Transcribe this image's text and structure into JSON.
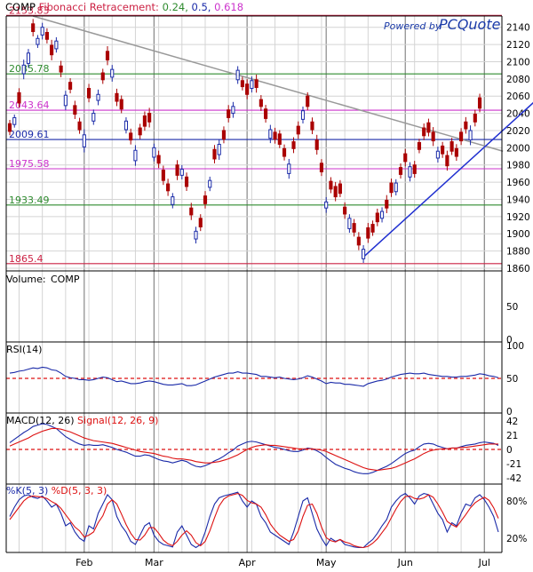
{
  "chart_data": [
    {
      "panel": "price",
      "type": "candlestick",
      "title": "COMP",
      "title_suffix": "Fibonacci Retracement:",
      "fib_ratio_labels": [
        "0.24",
        "0.5",
        "0.618"
      ],
      "watermark_top": "Powered by",
      "watermark_brand": "PCQuote",
      "ylim": [
        1860,
        2150
      ],
      "yticks": [
        "2140",
        "2120",
        "2100",
        "2080",
        "2060",
        "2040",
        "2020",
        "2000",
        "1980",
        "1960",
        "1940",
        "1920",
        "1900",
        "1880",
        "1860"
      ],
      "ytick_values": [
        2140,
        2120,
        2100,
        2080,
        2060,
        2040,
        2020,
        2000,
        1980,
        1960,
        1940,
        1920,
        1900,
        1880,
        1860
      ],
      "fib_levels": [
        {
          "value": 2153.83,
          "label": "2153.83",
          "color": "#cc2244"
        },
        {
          "value": 2085.78,
          "label": "2085.78",
          "color": "#2e8b2e"
        },
        {
          "value": 2043.64,
          "label": "2043.64",
          "color": "#cc33cc"
        },
        {
          "value": 2009.61,
          "label": "2009.61",
          "color": "#1a2aa8"
        },
        {
          "value": 1975.58,
          "label": "1975.58",
          "color": "#cc33cc"
        },
        {
          "value": 1933.49,
          "label": "1933.49",
          "color": "#2e8b2e"
        },
        {
          "value": 1865.4,
          "label": "1865.4",
          "color": "#cc2244"
        }
      ],
      "trendlines": [
        {
          "from": [
            5,
            2153
          ],
          "to": [
            106,
            1996
          ],
          "color": "#999999"
        },
        {
          "from": [
            76,
            1873
          ],
          "to": [
            110,
            2040
          ],
          "color": "#1f2fd0"
        }
      ],
      "month_labels": [
        {
          "label": "Feb",
          "index": 16
        },
        {
          "label": "Mar",
          "index": 31
        },
        {
          "label": "Apr",
          "index": 51
        },
        {
          "label": "May",
          "index": 68
        },
        {
          "label": "Jun",
          "index": 85
        },
        {
          "label": "Jul",
          "index": 102
        }
      ],
      "close": [
        2019,
        2035,
        2052,
        2096,
        2110,
        2135,
        2127,
        2140,
        2126,
        2108,
        2124,
        2088,
        2061,
        2068,
        2039,
        2021,
        2015,
        2058,
        2040,
        2062,
        2079,
        2102,
        2091,
        2054,
        2045,
        2031,
        2009,
        1997,
        2015,
        2025,
        2030,
        2000,
        1982,
        1962,
        1950,
        1943,
        1968,
        1975,
        1955,
        1922,
        1903,
        1908,
        1935,
        1962,
        1987,
        2004,
        2010,
        2035,
        2048,
        2090,
        2071,
        2062,
        2078,
        2070,
        2048,
        2034,
        2021,
        2010,
        2004,
        1990,
        1981,
        1999,
        2016,
        2043,
        2048,
        2021,
        1998,
        1972,
        1937,
        1952,
        1943,
        1947,
        1923,
        1918,
        1902,
        1887,
        1882,
        1895,
        1902,
        1914,
        1926,
        1930,
        1948,
        1959,
        1969,
        1984,
        1978,
        1970,
        1998,
        2014,
        2018,
        2008,
        1996,
        1993,
        1979,
        1996,
        1990,
        2008,
        2022,
        2020,
        2030,
        2046,
        2039,
        2030,
        2019,
        1996
      ],
      "open_offset": [
        9,
        -8,
        12,
        -10,
        -12,
        9,
        -7,
        -9,
        8,
        11,
        -9,
        7,
        -12,
        8,
        10,
        9,
        -14,
        11,
        -9,
        -7,
        8,
        10,
        -9,
        9,
        11,
        -10,
        8,
        -12,
        8,
        12,
        10,
        -11,
        9,
        12,
        8,
        -9,
        12,
        -7,
        11,
        8,
        -9,
        10,
        9,
        -8,
        11,
        -12,
        10,
        9,
        -8,
        -11,
        7,
        12,
        -9,
        9,
        8,
        11,
        -10,
        8,
        12,
        9,
        -11,
        8,
        9,
        -10,
        12,
        9,
        11,
        10,
        -7,
        9,
        12,
        11,
        8,
        -12,
        10,
        9,
        -11,
        12,
        9,
        10,
        -8,
        9,
        11,
        -10,
        8,
        9,
        -12,
        10,
        8,
        9,
        11,
        10,
        -8,
        9,
        12,
        11,
        9,
        10,
        8,
        -11,
        9,
        12
      ],
      "range": [
        11,
        9,
        13,
        16,
        12,
        14,
        10,
        13,
        12,
        16,
        11,
        15,
        13,
        12,
        14,
        12,
        16,
        13,
        11,
        14,
        12,
        15,
        13,
        14,
        12,
        11,
        13,
        15,
        12,
        13,
        16,
        12,
        14,
        13,
        15,
        11,
        14,
        12,
        13,
        15,
        13,
        12,
        14,
        11,
        13,
        15,
        12,
        14,
        13,
        12,
        11,
        14,
        12,
        15,
        13,
        12,
        14,
        13,
        11,
        12,
        15,
        13,
        14,
        12,
        11,
        13,
        15,
        12,
        14,
        12,
        13,
        11,
        14,
        12,
        13,
        15,
        12,
        14,
        11,
        13,
        12,
        15,
        13,
        11,
        12,
        14,
        13,
        12,
        11,
        13,
        12,
        15,
        13,
        12,
        14,
        11,
        13,
        12,
        14,
        15,
        13,
        12,
        14,
        11,
        13,
        12
      ]
    },
    {
      "panel": "volume",
      "type": "bar",
      "title": "Volume:",
      "series_name": "COMP",
      "yticks": [
        "50",
        "0"
      ],
      "ytick_values": [
        50,
        0
      ]
    },
    {
      "panel": "rsi",
      "type": "line",
      "title": "RSI(14)",
      "ylim": [
        0,
        100
      ],
      "yticks": [
        "100",
        "50",
        "0"
      ],
      "ytick_values": [
        100,
        50,
        0
      ],
      "reference_line": 50,
      "values": [
        58,
        59,
        61,
        62,
        64,
        66,
        65,
        67,
        66,
        63,
        62,
        58,
        53,
        51,
        50,
        48,
        48,
        47,
        48,
        50,
        52,
        51,
        48,
        45,
        46,
        44,
        42,
        42,
        43,
        45,
        46,
        45,
        43,
        41,
        40,
        40,
        41,
        42,
        39,
        39,
        40,
        43,
        46,
        49,
        52,
        54,
        56,
        58,
        58,
        60,
        58,
        58,
        57,
        56,
        53,
        53,
        52,
        51,
        52,
        50,
        49,
        48,
        49,
        51,
        54,
        52,
        49,
        46,
        42,
        44,
        43,
        43,
        41,
        41,
        40,
        39,
        38,
        42,
        44,
        46,
        47,
        49,
        52,
        54,
        56,
        57,
        58,
        57,
        57,
        58,
        56,
        55,
        54,
        53,
        53,
        52,
        52,
        53,
        53,
        54,
        55,
        57,
        56,
        54,
        53,
        51
      ]
    },
    {
      "panel": "macd",
      "type": "line",
      "title": "MACD(12, 26)",
      "signal_label": "Signal(12, 26, 9)",
      "ylim": [
        -50,
        50
      ],
      "yticks": [
        "42",
        "21",
        "0",
        "-21",
        "-42"
      ],
      "ytick_values": [
        42,
        21,
        0,
        -21,
        -42
      ],
      "series": [
        {
          "name": "MACD(12, 26)",
          "color": "#1a2aa8",
          "values": [
            10,
            15,
            20,
            25,
            29,
            34,
            36,
            38,
            37,
            34,
            31,
            25,
            19,
            15,
            11,
            8,
            6,
            7,
            6,
            6,
            7,
            5,
            3,
            0,
            -2,
            -4,
            -7,
            -10,
            -10,
            -8,
            -9,
            -12,
            -15,
            -17,
            -18,
            -20,
            -18,
            -16,
            -18,
            -22,
            -25,
            -26,
            -24,
            -21,
            -17,
            -14,
            -10,
            -5,
            -1,
            5,
            8,
            11,
            12,
            11,
            9,
            7,
            5,
            3,
            2,
            0,
            -2,
            -3,
            -3,
            -1,
            2,
            1,
            -2,
            -6,
            -12,
            -17,
            -22,
            -25,
            -28,
            -30,
            -33,
            -35,
            -36,
            -36,
            -34,
            -31,
            -28,
            -25,
            -21,
            -16,
            -11,
            -6,
            -3,
            -1,
            4,
            8,
            9,
            8,
            5,
            3,
            1,
            2,
            2,
            4,
            6,
            7,
            8,
            10,
            11,
            10,
            9,
            6
          ]
        },
        {
          "name": "Signal(12, 26, 9)",
          "color": "#dd1111",
          "values": [
            5,
            8,
            11,
            14,
            17,
            21,
            24,
            27,
            29,
            31,
            31,
            30,
            28,
            26,
            23,
            20,
            17,
            15,
            13,
            12,
            11,
            10,
            9,
            7,
            5,
            3,
            1,
            -1,
            -3,
            -4,
            -5,
            -6,
            -8,
            -10,
            -11,
            -13,
            -14,
            -14,
            -15,
            -16,
            -18,
            -19,
            -20,
            -20,
            -19,
            -18,
            -16,
            -14,
            -11,
            -8,
            -4,
            0,
            3,
            5,
            6,
            7,
            6,
            6,
            5,
            4,
            3,
            2,
            1,
            1,
            1,
            1,
            0,
            -1,
            -3,
            -6,
            -9,
            -12,
            -15,
            -18,
            -21,
            -24,
            -27,
            -29,
            -30,
            -31,
            -30,
            -29,
            -28,
            -26,
            -23,
            -20,
            -17,
            -14,
            -10,
            -6,
            -3,
            -1,
            0,
            1,
            1,
            2,
            2,
            3,
            3,
            4,
            5,
            6,
            7,
            8,
            8,
            8
          ]
        }
      ]
    },
    {
      "panel": "stochastic",
      "type": "line",
      "title": "%K(5, 3)",
      "d_label": "%D(5, 3, 3)",
      "ylim": [
        0,
        100
      ],
      "yticks": [
        "80%",
        "20%"
      ],
      "ytick_values": [
        80,
        20
      ],
      "series": [
        {
          "name": "%K(5, 3)",
          "color": "#1a2aa8",
          "values": [
            55,
            70,
            82,
            88,
            90,
            86,
            84,
            88,
            80,
            70,
            75,
            60,
            40,
            45,
            30,
            20,
            15,
            40,
            35,
            60,
            75,
            90,
            82,
            55,
            40,
            30,
            15,
            10,
            25,
            40,
            45,
            25,
            15,
            10,
            8,
            6,
            30,
            40,
            25,
            10,
            5,
            10,
            30,
            55,
            75,
            85,
            88,
            90,
            92,
            94,
            80,
            70,
            80,
            75,
            55,
            45,
            30,
            25,
            20,
            15,
            10,
            30,
            55,
            80,
            85,
            60,
            35,
            20,
            8,
            20,
            15,
            18,
            10,
            8,
            6,
            5,
            5,
            12,
            18,
            28,
            40,
            50,
            70,
            80,
            88,
            92,
            85,
            75,
            88,
            92,
            90,
            75,
            60,
            50,
            30,
            45,
            40,
            60,
            75,
            72,
            85,
            90,
            82,
            70,
            55,
            30
          ]
        },
        {
          "name": "%D(5, 3, 3)",
          "color": "#dd1111",
          "values": [
            50,
            60,
            70,
            80,
            86,
            88,
            87,
            86,
            84,
            79,
            75,
            68,
            58,
            48,
            38,
            32,
            22,
            25,
            30,
            45,
            56,
            75,
            82,
            75,
            59,
            42,
            28,
            18,
            17,
            25,
            37,
            37,
            28,
            17,
            11,
            8,
            15,
            25,
            32,
            25,
            13,
            8,
            15,
            32,
            53,
            72,
            83,
            88,
            90,
            92,
            89,
            81,
            77,
            75,
            70,
            58,
            43,
            33,
            25,
            20,
            15,
            18,
            32,
            55,
            73,
            75,
            60,
            38,
            21,
            16,
            14,
            18,
            14,
            12,
            8,
            6,
            5,
            7,
            12,
            19,
            29,
            39,
            53,
            67,
            79,
            87,
            88,
            84,
            83,
            85,
            90,
            86,
            75,
            62,
            47,
            42,
            38,
            48,
            58,
            69,
            77,
            82,
            86,
            81,
            69,
            52
          ]
        }
      ]
    }
  ]
}
